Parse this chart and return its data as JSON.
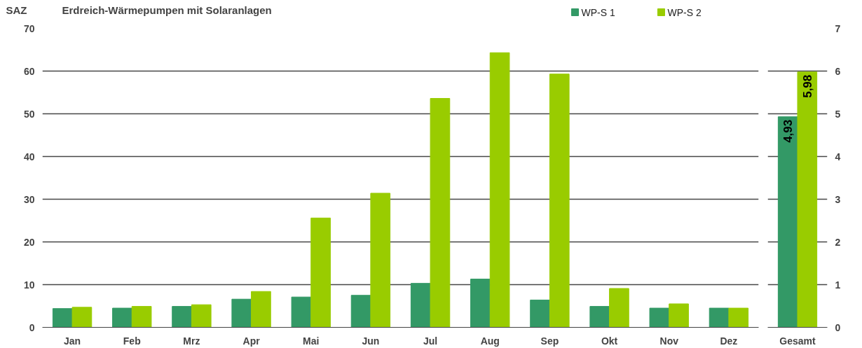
{
  "chart_data": [
    {
      "type": "bar",
      "title": "Erdreich-Wärmepumpen  mit Solaranlagen",
      "ylabel": "SAZ",
      "categories": [
        "Jan",
        "Feb",
        "Mrz",
        "Apr",
        "Mai",
        "Jun",
        "Jul",
        "Aug",
        "Sep",
        "Okt",
        "Nov",
        "Dez"
      ],
      "series": [
        {
          "name": "WP-S 1",
          "color": "#339966",
          "values": [
            4.4,
            4.5,
            4.9,
            6.6,
            7.1,
            7.5,
            10.3,
            11.3,
            6.4,
            4.9,
            4.5,
            4.5
          ]
        },
        {
          "name": "WP-S 2",
          "color": "#99cc00",
          "values": [
            4.7,
            4.9,
            5.3,
            8.4,
            25.6,
            31.4,
            53.6,
            64.3,
            59.3,
            9.1,
            5.5,
            4.5
          ]
        }
      ],
      "ylim": [
        0,
        70
      ],
      "yticks": [
        0,
        10,
        20,
        30,
        40,
        50,
        60,
        70
      ],
      "grid": "y",
      "legend": "top right"
    },
    {
      "type": "bar",
      "categories": [
        "Gesamt"
      ],
      "series": [
        {
          "color": "#339966",
          "values": [
            4.93
          ],
          "value_labels": [
            "4,93"
          ]
        },
        {
          "color": "#99cc00",
          "values": [
            5.98
          ],
          "value_labels": [
            "5,98"
          ]
        }
      ],
      "ylim": [
        0,
        7
      ],
      "yticks": [
        0,
        1,
        2,
        3,
        4,
        5,
        6,
        7
      ],
      "grid": "y"
    }
  ]
}
